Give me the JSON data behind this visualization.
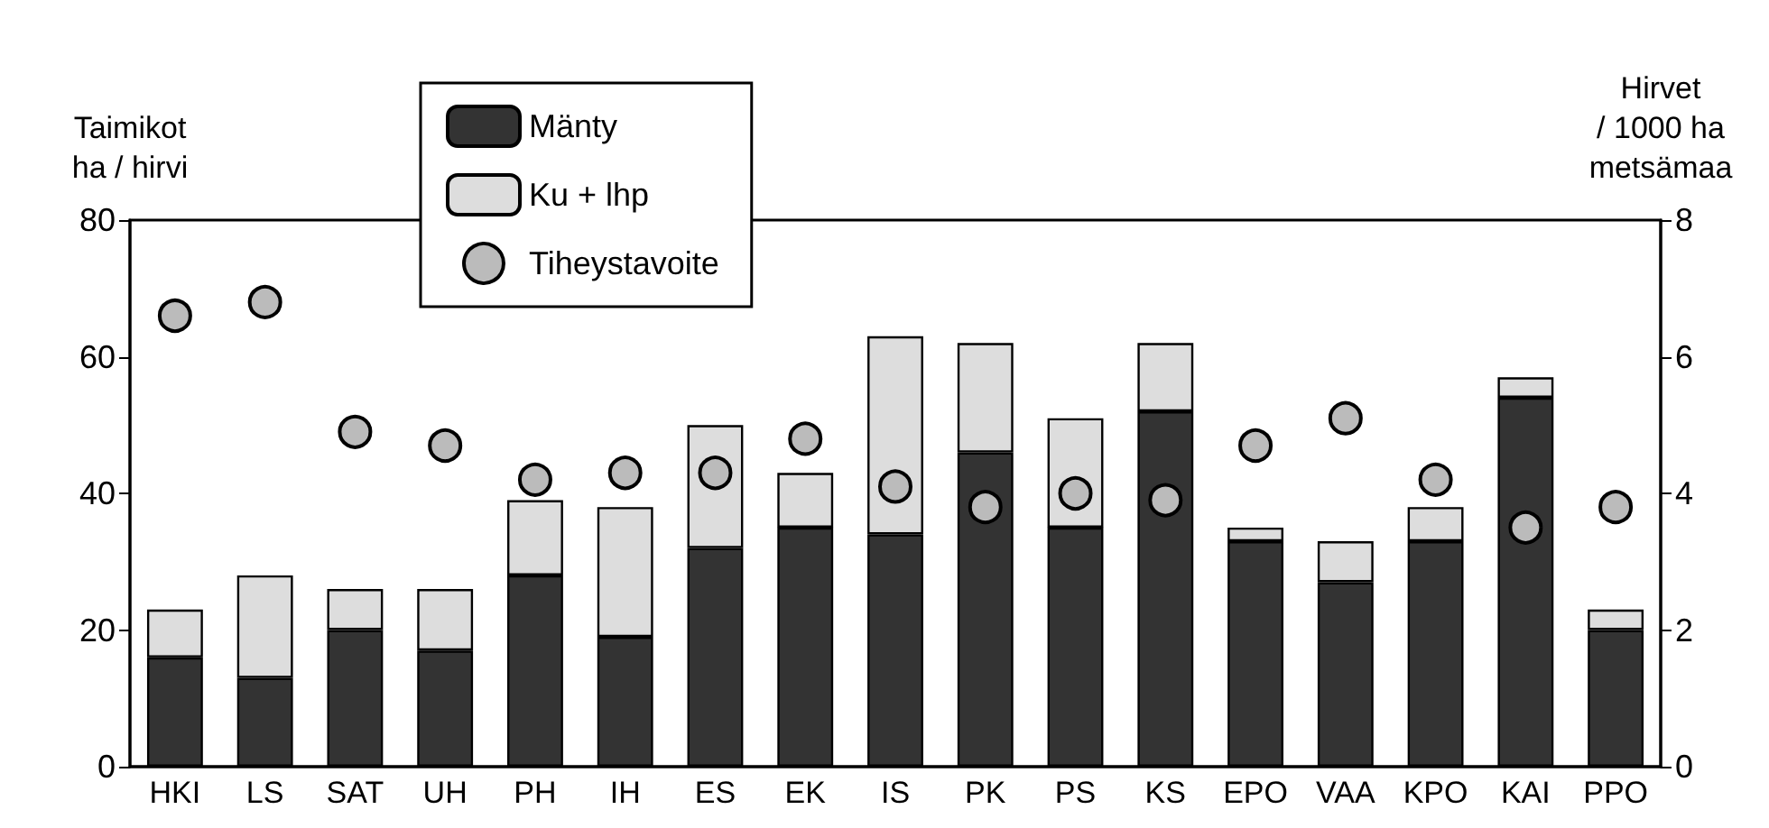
{
  "chart_data": {
    "type": "bar",
    "stacked": true,
    "ylabel": "Taimikot\nha / hirvi",
    "y2label": "Hirvet\n/ 1000 ha\nmetsämaa",
    "categories": [
      "HKI",
      "LS",
      "SAT",
      "UH",
      "PH",
      "IH",
      "ES",
      "EK",
      "IS",
      "PK",
      "PS",
      "KS",
      "EPO",
      "VAA",
      "KPO",
      "KAI",
      "PPO"
    ],
    "series": [
      {
        "name": "Mänty",
        "color": "#333333",
        "values": [
          16,
          13,
          20,
          17,
          28,
          19,
          32,
          35,
          34,
          46,
          35,
          52,
          33,
          27,
          33,
          54,
          20
        ]
      },
      {
        "name": "Ku + lhp",
        "color": "#dddddd",
        "values": [
          7,
          15,
          6,
          9,
          11,
          19,
          18,
          8,
          29,
          16,
          16,
          10,
          2,
          6,
          5,
          3,
          3
        ]
      },
      {
        "name": "Tiheystavoite",
        "type": "scatter",
        "axis": "y2",
        "marker": "circle",
        "color": "#bbbbbb",
        "values": [
          6.6,
          6.8,
          4.9,
          4.7,
          4.2,
          4.3,
          4.3,
          4.8,
          4.1,
          3.8,
          4.0,
          3.9,
          4.7,
          5.1,
          4.2,
          3.5,
          3.8
        ]
      }
    ],
    "ylim": [
      0,
      80
    ],
    "yticks": [
      0,
      20,
      40,
      60,
      80
    ],
    "y2lim": [
      0,
      8
    ],
    "y2ticks": [
      0,
      2,
      4,
      6,
      8
    ],
    "legend": "top"
  }
}
